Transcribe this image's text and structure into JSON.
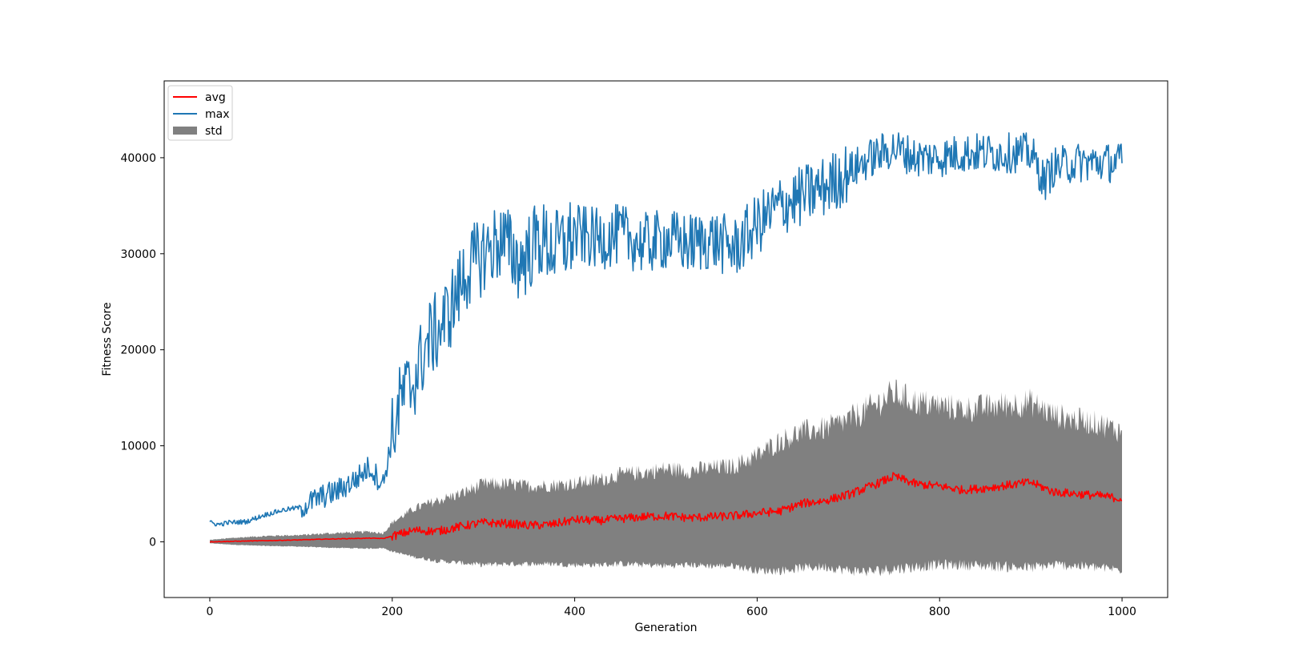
{
  "chart_data": {
    "type": "line",
    "title": "",
    "xlabel": "Generation",
    "ylabel": "Fitness Score",
    "xlim": [
      -50,
      1050
    ],
    "ylim": [
      -5800,
      48000
    ],
    "x_ticks": [
      0,
      200,
      400,
      600,
      800,
      1000
    ],
    "y_ticks": [
      0,
      10000,
      20000,
      30000,
      40000
    ],
    "legend_position": "top-left",
    "grid": false,
    "x_range": [
      0,
      1000
    ],
    "series": [
      {
        "name": "avg",
        "color": "#ff0000",
        "x": [
          0,
          25,
          50,
          75,
          100,
          125,
          150,
          175,
          190,
          200,
          225,
          250,
          275,
          300,
          325,
          350,
          375,
          400,
          425,
          450,
          475,
          500,
          525,
          550,
          575,
          600,
          625,
          650,
          675,
          700,
          725,
          750,
          775,
          800,
          825,
          850,
          875,
          900,
          925,
          950,
          975,
          1000
        ],
        "values": [
          0,
          50,
          100,
          150,
          200,
          280,
          330,
          380,
          340,
          600,
          1200,
          1100,
          1600,
          2000,
          1900,
          1700,
          1800,
          2300,
          2200,
          2400,
          2600,
          2700,
          2500,
          2600,
          2700,
          3000,
          3200,
          4000,
          4300,
          4900,
          5800,
          6800,
          6000,
          5800,
          5400,
          5600,
          5900,
          6200,
          5200,
          5000,
          4800,
          4500
        ]
      },
      {
        "name": "max",
        "color": "#1f77b4",
        "x": [
          0,
          10,
          20,
          40,
          60,
          80,
          100,
          120,
          140,
          160,
          175,
          190,
          200,
          210,
          220,
          230,
          240,
          250,
          260,
          270,
          280,
          300,
          320,
          340,
          360,
          380,
          400,
          425,
          450,
          475,
          500,
          525,
          550,
          575,
          600,
          625,
          650,
          675,
          700,
          725,
          750,
          775,
          800,
          825,
          850,
          875,
          900,
          915,
          925,
          950,
          975,
          1000
        ],
        "values": [
          2000,
          1800,
          2000,
          2100,
          2800,
          3300,
          3600,
          4600,
          5300,
          6500,
          7800,
          6000,
          11000,
          15000,
          16000,
          18500,
          21000,
          22000,
          23500,
          25500,
          28000,
          30000,
          31500,
          29000,
          31500,
          30500,
          32000,
          31500,
          32000,
          31000,
          31500,
          31000,
          31500,
          30500,
          33000,
          35000,
          36000,
          37000,
          38500,
          40000,
          41000,
          40000,
          40000,
          40500,
          40500,
          40500,
          40500,
          37500,
          39000,
          39500,
          39500,
          39500
        ]
      },
      {
        "name": "std",
        "color": "#808080",
        "type": "band",
        "x": [
          0,
          25,
          50,
          75,
          100,
          125,
          150,
          175,
          190,
          200,
          225,
          250,
          275,
          300,
          325,
          350,
          375,
          400,
          425,
          450,
          475,
          500,
          525,
          550,
          575,
          600,
          625,
          650,
          675,
          700,
          725,
          750,
          775,
          800,
          825,
          850,
          875,
          900,
          925,
          950,
          975,
          1000
        ],
        "upper": [
          200,
          400,
          550,
          650,
          700,
          850,
          950,
          1050,
          900,
          2000,
          3500,
          4300,
          5000,
          6000,
          6000,
          5800,
          5900,
          6100,
          6400,
          7000,
          7200,
          7600,
          7400,
          7700,
          7900,
          9000,
          10500,
          11500,
          11800,
          12700,
          14000,
          15500,
          14500,
          14200,
          13800,
          14000,
          14300,
          14500,
          13200,
          12700,
          12300,
          11500
        ],
        "lower": [
          -150,
          -300,
          -400,
          -450,
          -500,
          -600,
          -650,
          -700,
          -650,
          -1000,
          -1600,
          -2000,
          -2200,
          -2400,
          -2300,
          -2300,
          -2300,
          -2400,
          -2400,
          -2300,
          -2400,
          -2500,
          -2400,
          -2500,
          -2500,
          -3000,
          -3000,
          -2700,
          -2600,
          -3000,
          -3100,
          -2800,
          -2600,
          -2400,
          -2400,
          -2500,
          -2600,
          -2700,
          -2400,
          -2500,
          -2700,
          -2900
        ]
      }
    ]
  }
}
